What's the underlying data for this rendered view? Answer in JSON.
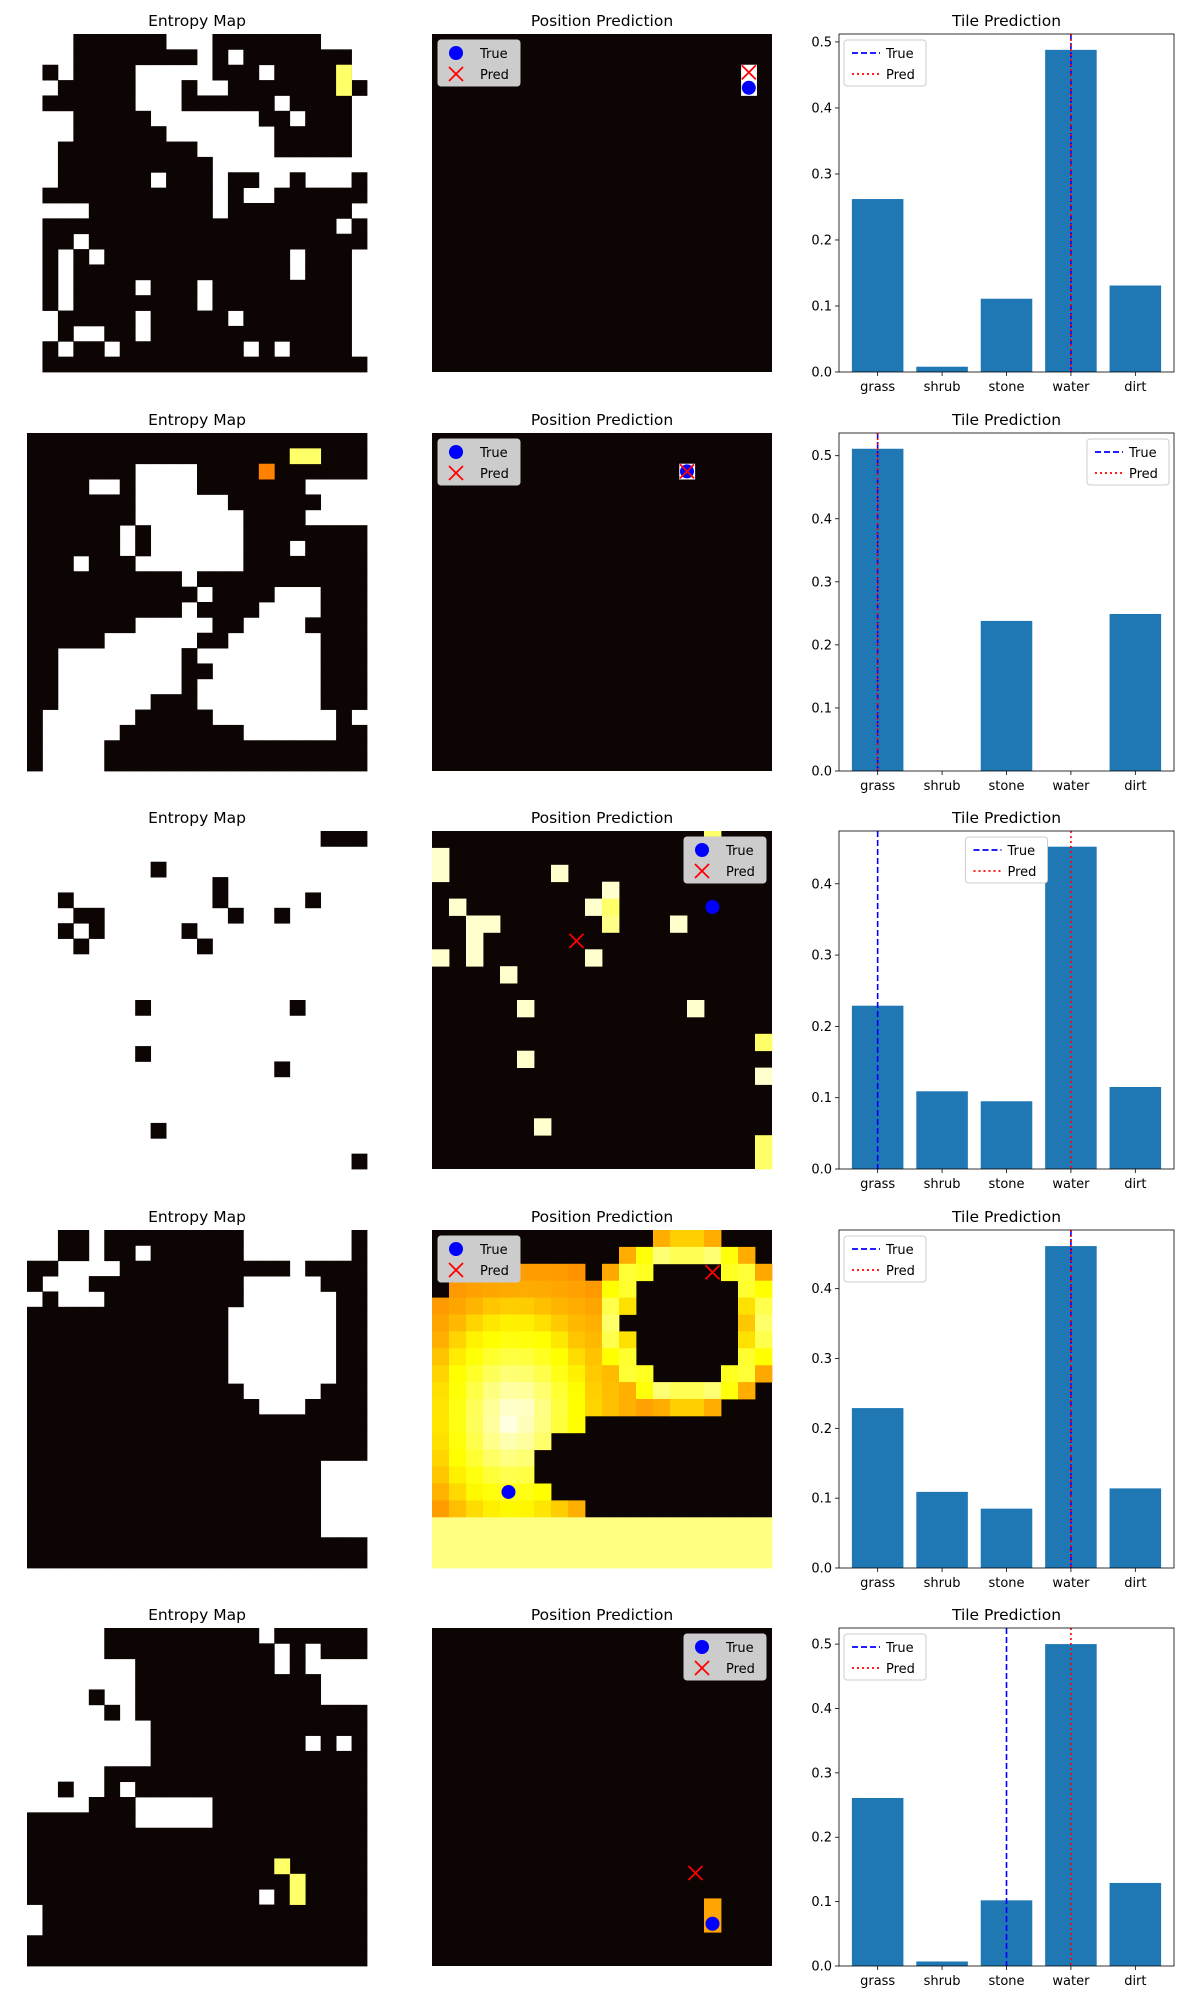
{
  "figure": {
    "entropy_title": "Entropy Map",
    "position_title": "Position Prediction",
    "tile_title": "Tile Prediction",
    "legend_true": "True",
    "legend_pred": "Pred",
    "colors": {
      "bar": "#1f77b4",
      "true_line": "#0000ff",
      "pred_line": "#ff0000",
      "true_marker": "#0000ff",
      "pred_marker": "#ff0000",
      "cmap": "hot"
    }
  },
  "chart_data": [
    {
      "type": "heatmap",
      "title": "Entropy Map",
      "grid": [
        "0001111110001111111000",
        "0001111111101011111110",
        "0101111000001110111110",
        "0011111000100111111111",
        "0111111000111111011110",
        "0001111100000001101110",
        "0001111110000000111110",
        "0011111111100000111110",
        "0011111111110000000000",
        "0011111101110110010001",
        "0111111111110100111111",
        "0000111111110111111110",
        "0111111111111111111101",
        "0110111111111111111111",
        "0101011111111111101110",
        "0101111111111111101110",
        "0101111011101111111110",
        "0101111111101111111110",
        "0011111011111011111110",
        "0010011011111111111110",
        "0101101111111101011110",
        "0111111111111111111111"
      ],
      "hot_cells": [
        {
          "row": 2,
          "col": 20,
          "value": 0.85
        },
        {
          "row": 3,
          "col": 20,
          "value": 0.85
        }
      ]
    },
    {
      "type": "heatmap",
      "title": "Position Prediction",
      "grid_size": 22,
      "hot_cells": [
        {
          "row": 2,
          "col": 20,
          "value": 1.0
        },
        {
          "row": 3,
          "col": 20,
          "value": 1.0
        }
      ],
      "true": {
        "col": 20,
        "row": 3
      },
      "pred": {
        "col": 20,
        "row": 2
      },
      "legend": [
        "True",
        "Pred"
      ],
      "legend_position": "upper left"
    },
    {
      "type": "bar",
      "title": "Tile Prediction",
      "categories": [
        "grass",
        "shrub",
        "stone",
        "water",
        "dirt"
      ],
      "values": [
        0.262,
        0.008,
        0.111,
        0.488,
        0.131
      ],
      "ylim": [
        0,
        0.512
      ],
      "yticks": [
        0.0,
        0.1,
        0.2,
        0.3,
        0.4,
        0.5
      ],
      "true_index": 3,
      "pred_index": 3,
      "legend": [
        "True",
        "Pred"
      ],
      "legend_position": "upper left"
    },
    {
      "type": "heatmap",
      "title": "Entropy Map",
      "grid": [
        "1111111111111111111111",
        "1111111111111111111111",
        "1111111000011111111111",
        "1111001000011111110000",
        "1111111000000111111000",
        "1111111000000011110000",
        "1111110100000011111111",
        "1111110100000011101111",
        "1110111000000011111111",
        "1111111111011111111111",
        "1111111111101111000111",
        "1111111111011110000111",
        "1111111000001100001111",
        "1111100000011000000111",
        "1100000000100000000111",
        "1100000000110000000111",
        "1100000000100000000111",
        "1100000011100000000111",
        "1000000111110000000010",
        "1000001111111100000011",
        "1000011111111111111111",
        "1000011111111111111111"
      ],
      "hot_cells": [
        {
          "row": 1,
          "col": 17,
          "value": 0.85
        },
        {
          "row": 1,
          "col": 18,
          "value": 0.85
        },
        {
          "row": 2,
          "col": 15,
          "value": 0.55
        }
      ]
    },
    {
      "type": "heatmap",
      "title": "Position Prediction",
      "grid_size": 22,
      "hot_cells": [
        {
          "row": 2,
          "col": 16,
          "value": 1.0
        }
      ],
      "true": {
        "col": 16,
        "row": 2
      },
      "pred": {
        "col": 16,
        "row": 2
      },
      "legend": [
        "True",
        "Pred"
      ],
      "legend_position": "upper left"
    },
    {
      "type": "bar",
      "title": "Tile Prediction",
      "categories": [
        "grass",
        "shrub",
        "stone",
        "water",
        "dirt"
      ],
      "values": [
        0.511,
        0.0,
        0.238,
        0.0,
        0.249
      ],
      "ylim": [
        0,
        0.536
      ],
      "yticks": [
        0.0,
        0.1,
        0.2,
        0.3,
        0.4,
        0.5
      ],
      "true_index": 0,
      "pred_index": 0,
      "legend": [
        "True",
        "Pred"
      ],
      "legend_position": "upper right"
    },
    {
      "type": "heatmap",
      "title": "Entropy Map",
      "grid": [
        "0000000000000000000111",
        "0000000000000000000000",
        "0000000010000000000000",
        "0000000000001000000000",
        "0010000000001000001000",
        "0001100000000100100000",
        "0010100000100000000000",
        "0001000000010000000000",
        "0000000000000000000000",
        "0000000000000000000000",
        "0000000000000000000000",
        "0000000100000000010000",
        "0000000000000000000000",
        "0000000000000000000000",
        "0000000100000000000000",
        "0000000000000000100000",
        "0000000000000000000000",
        "0000000000000000000000",
        "0000000000000000000000",
        "0000000010000000000000",
        "0000000000000000000000",
        "0000000000000000000001"
      ],
      "hot_cells": []
    },
    {
      "type": "heatmap",
      "title": "Position Prediction",
      "grid_size": 20,
      "hot_cells": [
        {
          "row": 0,
          "col": 16,
          "value": 0.85
        },
        {
          "row": 1,
          "col": 0,
          "value": 0.95
        },
        {
          "row": 2,
          "col": 0,
          "value": 0.95
        },
        {
          "row": 2,
          "col": 7,
          "value": 0.95
        },
        {
          "row": 3,
          "col": 10,
          "value": 0.95
        },
        {
          "row": 4,
          "col": 1,
          "value": 0.95
        },
        {
          "row": 4,
          "col": 9,
          "value": 0.95
        },
        {
          "row": 4,
          "col": 10,
          "value": 0.85
        },
        {
          "row": 5,
          "col": 2,
          "value": 0.95
        },
        {
          "row": 5,
          "col": 3,
          "value": 0.95
        },
        {
          "row": 5,
          "col": 10,
          "value": 0.88
        },
        {
          "row": 5,
          "col": 14,
          "value": 0.95
        },
        {
          "row": 6,
          "col": 2,
          "value": 0.95
        },
        {
          "row": 7,
          "col": 0,
          "value": 0.95
        },
        {
          "row": 7,
          "col": 2,
          "value": 0.95
        },
        {
          "row": 7,
          "col": 9,
          "value": 0.95
        },
        {
          "row": 8,
          "col": 4,
          "value": 0.95
        },
        {
          "row": 10,
          "col": 5,
          "value": 0.95
        },
        {
          "row": 10,
          "col": 15,
          "value": 0.95
        },
        {
          "row": 12,
          "col": 19,
          "value": 0.85
        },
        {
          "row": 13,
          "col": 5,
          "value": 0.95
        },
        {
          "row": 14,
          "col": 19,
          "value": 0.95
        },
        {
          "row": 17,
          "col": 6,
          "value": 0.95
        },
        {
          "row": 18,
          "col": 19,
          "value": 0.85
        },
        {
          "row": 19,
          "col": 19,
          "value": 0.85
        }
      ],
      "true": {
        "col": 16,
        "row": 4
      },
      "pred": {
        "col": 8,
        "row": 6
      },
      "legend": [
        "True",
        "Pred"
      ],
      "legend_position": "upper right"
    },
    {
      "type": "bar",
      "title": "Tile Prediction",
      "categories": [
        "grass",
        "shrub",
        "stone",
        "water",
        "dirt"
      ],
      "values": [
        0.229,
        0.109,
        0.095,
        0.452,
        0.115
      ],
      "ylim": [
        0,
        0.474
      ],
      "yticks": [
        0.0,
        0.1,
        0.2,
        0.3,
        0.4
      ],
      "true_index": 0,
      "pred_index": 3,
      "legend": [
        "True",
        "Pred"
      ],
      "legend_position": "upper center"
    },
    {
      "type": "heatmap",
      "title": "Entropy Map",
      "grid": [
        "0011011111111100000001",
        "0011011011111100000001",
        "1100001111111111101111",
        "1000111111111100000111",
        "0100011111111100000011",
        "1111111111111000000011",
        "1111111111111000000011",
        "1111111111111000000011",
        "1111111111111000000011",
        "1111111111111000000011",
        "1111111111111100000111",
        "1111111111111110001111",
        "1111111111111111111111",
        "1111111111111111111111",
        "1111111111111111111111",
        "1111111111111111111000",
        "1111111111111111111000",
        "1111111111111111111000",
        "1111111111111111111000",
        "1111111111111111111000",
        "1111111111111111111111",
        "1111111111111111111111"
      ],
      "hot_cells": []
    },
    {
      "type": "heatmap",
      "title": "Position Prediction",
      "grid_size": 20,
      "hot_cells": [],
      "field": "orange-yellow blob covering left half, ring shape upper right",
      "true": {
        "col": 4,
        "row": 15
      },
      "pred": {
        "col": 16,
        "row": 2
      },
      "legend": [
        "True",
        "Pred"
      ],
      "legend_position": "upper left"
    },
    {
      "type": "bar",
      "title": "Tile Prediction",
      "categories": [
        "grass",
        "shrub",
        "stone",
        "water",
        "dirt"
      ],
      "values": [
        0.229,
        0.109,
        0.085,
        0.461,
        0.114
      ],
      "ylim": [
        0,
        0.484
      ],
      "yticks": [
        0.0,
        0.1,
        0.2,
        0.3,
        0.4
      ],
      "true_index": 3,
      "pred_index": 3,
      "legend": [
        "True",
        "Pred"
      ],
      "legend_position": "upper left"
    },
    {
      "type": "heatmap",
      "title": "Entropy Map",
      "grid": [
        "0000011111111110111111",
        "0000011111111111010111",
        "0000000111111111010000",
        "0000000111111111111000",
        "0000100111111111111000",
        "0000010111111111111111",
        "0000000011111111111111",
        "0000000011111111110101",
        "0000000011111111111111",
        "0000011111111111111111",
        "0010010111111111111111",
        "0000111000001111111111",
        "1111111000001111111111",
        "1111111111111111111111",
        "1111111111111111111111",
        "1111111111111111111111",
        "1111111111111111111111",
        "1111111111111110111111",
        "0111111111111111111111",
        "0111111111111111111111",
        "1111111111111111111111",
        "1111111111111111111111"
      ],
      "hot_cells": [
        {
          "row": 15,
          "col": 16,
          "value": 0.85
        },
        {
          "row": 16,
          "col": 17,
          "value": 0.85
        },
        {
          "row": 17,
          "col": 17,
          "value": 0.85
        }
      ]
    },
    {
      "type": "heatmap",
      "title": "Position Prediction",
      "grid_size": 20,
      "hot_cells": [
        {
          "row": 16,
          "col": 16,
          "value": 0.6
        },
        {
          "row": 17,
          "col": 16,
          "value": 0.6
        }
      ],
      "true": {
        "col": 16,
        "row": 17
      },
      "pred": {
        "col": 15,
        "row": 14
      },
      "legend": [
        "True",
        "Pred"
      ],
      "legend_position": "upper right"
    },
    {
      "type": "bar",
      "title": "Tile Prediction",
      "categories": [
        "grass",
        "shrub",
        "stone",
        "water",
        "dirt"
      ],
      "values": [
        0.261,
        0.007,
        0.102,
        0.5,
        0.129
      ],
      "ylim": [
        0,
        0.525
      ],
      "yticks": [
        0.0,
        0.1,
        0.2,
        0.3,
        0.4,
        0.5
      ],
      "true_index": 2,
      "pred_index": 3,
      "legend": [
        "True",
        "Pred"
      ],
      "legend_position": "upper left"
    }
  ]
}
